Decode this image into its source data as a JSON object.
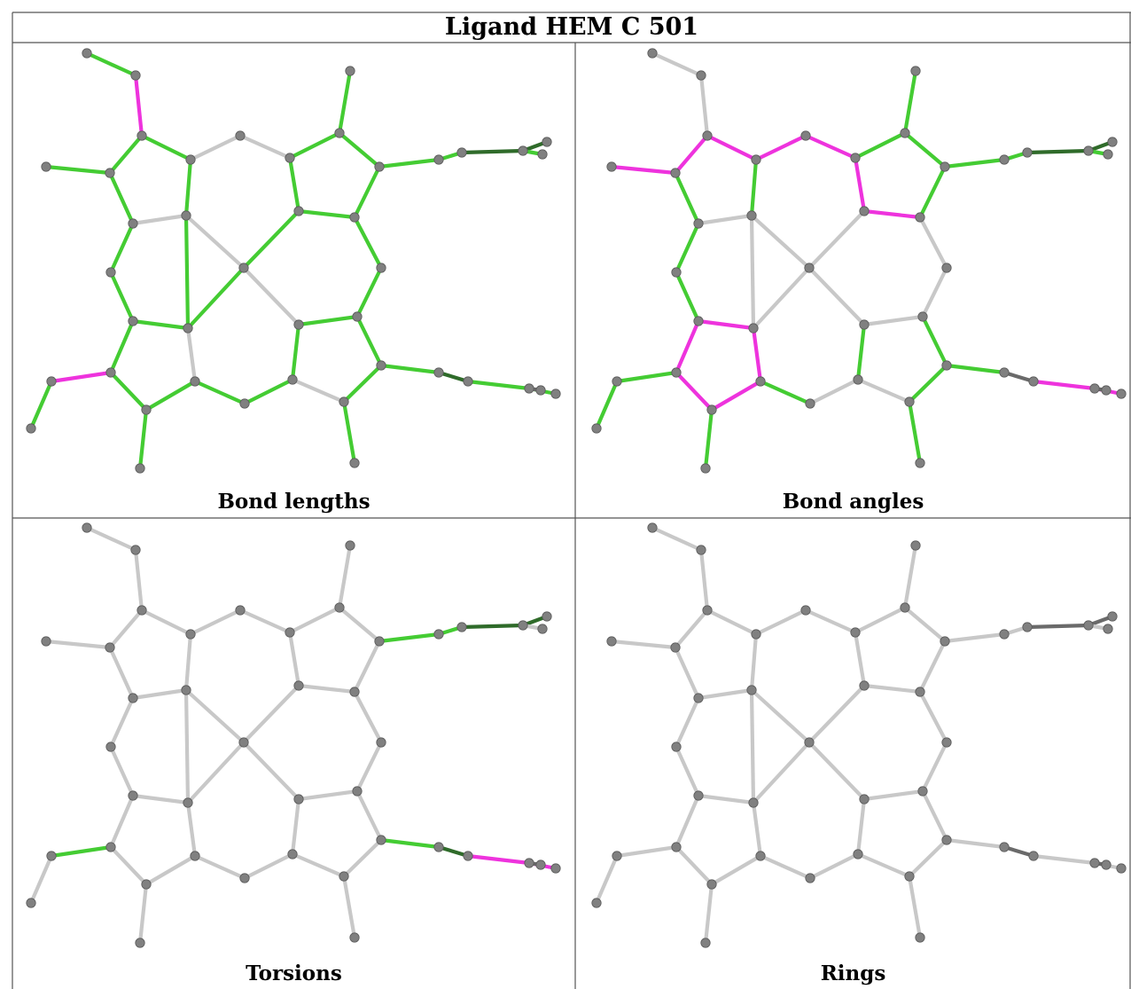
{
  "title": "Ligand HEM C 501",
  "colors": {
    "ok": "#44cc33",
    "outlier": "#ee33dd",
    "neutral": "#c8c8c8",
    "atom": "#808080"
  },
  "panels": [
    {
      "caption": "Bond lengths",
      "green": [
        [
          0,
          1
        ],
        [
          2,
          3
        ],
        [
          3,
          4
        ],
        [
          4,
          5
        ],
        [
          6,
          7
        ],
        [
          7,
          8
        ],
        [
          8,
          9
        ],
        [
          9,
          2
        ],
        [
          9,
          5
        ],
        [
          6,
          10
        ],
        [
          11,
          12
        ],
        [
          12,
          13
        ],
        [
          13,
          14
        ],
        [
          14,
          15
        ],
        [
          15,
          16
        ],
        [
          16,
          17
        ],
        [
          16,
          19
        ],
        [
          17,
          18
        ],
        [
          19,
          20
        ],
        [
          19,
          21
        ],
        [
          21,
          22
        ],
        [
          23,
          11
        ],
        [
          23,
          22
        ],
        [
          18,
          25
        ],
        [
          25,
          24
        ],
        [
          25,
          26
        ],
        [
          27,
          28
        ],
        [
          28,
          29
        ],
        [
          29,
          30
        ],
        [
          30,
          31
        ],
        [
          31,
          32
        ],
        [
          32,
          33
        ],
        [
          33,
          23
        ],
        [
          34,
          35
        ],
        [
          37,
          38
        ],
        [
          38,
          39
        ],
        [
          39,
          40
        ],
        [
          40,
          41
        ],
        [
          41,
          42
        ],
        [
          42,
          43
        ],
        [
          43,
          44
        ],
        [
          9,
          11
        ]
      ],
      "pink": [
        [
          1,
          2
        ],
        [
          2,
          4
        ],
        [
          36,
          37
        ]
      ],
      "dark": [
        [
          4,
          30
        ]
      ]
    },
    {
      "caption": "Bond angles",
      "green": [
        [
          8,
          9
        ],
        [
          9,
          2
        ],
        [
          3,
          4
        ],
        [
          4,
          5
        ],
        [
          6,
          10
        ],
        [
          11,
          12
        ],
        [
          12,
          13
        ],
        [
          13,
          14
        ],
        [
          15,
          16
        ],
        [
          16,
          19
        ],
        [
          17,
          18
        ],
        [
          18,
          25
        ],
        [
          19,
          21
        ],
        [
          21,
          22
        ],
        [
          22,
          23
        ],
        [
          26,
          27
        ],
        [
          27,
          28
        ],
        [
          28,
          29
        ],
        [
          29,
          30
        ],
        [
          31,
          32
        ],
        [
          32,
          33
        ],
        [
          33,
          23
        ],
        [
          34,
          35
        ],
        [
          38,
          39
        ],
        [
          39,
          40
        ],
        [
          40,
          41
        ],
        [
          42,
          43
        ],
        [
          43,
          44
        ]
      ],
      "pink": [
        [
          5,
          6
        ],
        [
          6,
          7
        ],
        [
          7,
          8
        ],
        [
          9,
          11
        ],
        [
          11,
          14
        ],
        [
          10,
          3
        ],
        [
          16,
          17
        ],
        [
          17,
          24
        ],
        [
          24,
          25
        ],
        [
          25,
          26
        ],
        [
          35,
          36
        ],
        [
          36,
          37
        ],
        [
          37,
          38
        ]
      ],
      "dark": []
    },
    {
      "caption": "Torsions",
      "green": [
        [
          11,
          12
        ],
        [
          12,
          13
        ],
        [
          13,
          14
        ],
        [
          14,
          15
        ],
        [
          33,
          34
        ],
        [
          34,
          35
        ],
        [
          35,
          36
        ],
        [
          18,
          25
        ],
        [
          25,
          26
        ]
      ],
      "pink": [
        [
          37,
          38
        ],
        [
          38,
          39
        ]
      ],
      "dark": []
    },
    {
      "caption": "Rings",
      "green": [],
      "pink": [],
      "dark": []
    }
  ]
}
